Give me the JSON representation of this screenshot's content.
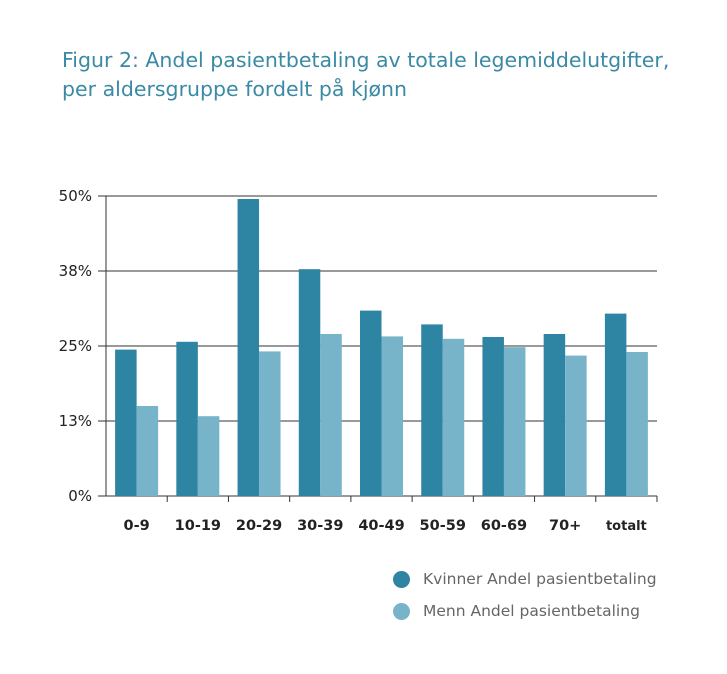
{
  "title": {
    "line1": "Figur 2: Andel pasientbetaling av totale legemiddelutgifter,",
    "line2": "per aldersgruppe fordelt på kjønn"
  },
  "colors": {
    "kvinner": "#2e84a3",
    "menn": "#78b4c9",
    "title": "#3a8aa6",
    "grid": "#333333"
  },
  "chart_data": {
    "type": "bar",
    "categories": [
      "0-9",
      "10-19",
      "20-29",
      "30-39",
      "40-49",
      "50-59",
      "60-69",
      "70+",
      "totalt"
    ],
    "series": [
      {
        "name": "Kvinner Andel pasientbetaling",
        "color": "#2e84a3",
        "values": [
          24.4,
          25.7,
          49.5,
          37.8,
          30.9,
          28.6,
          26.5,
          27.0,
          30.4
        ]
      },
      {
        "name": "Menn Andel pasientbetaling",
        "color": "#78b4c9",
        "values": [
          15.0,
          13.3,
          24.1,
          27.0,
          26.6,
          26.2,
          24.8,
          23.4,
          24.0
        ]
      }
    ],
    "yticks": [
      0,
      12.5,
      25,
      37.5,
      50
    ],
    "ytick_labels": [
      "0%",
      "13%",
      "25%",
      "38%",
      "50%"
    ],
    "ylim": [
      0,
      50
    ],
    "grid": true,
    "legend_position": "bottom-right"
  }
}
